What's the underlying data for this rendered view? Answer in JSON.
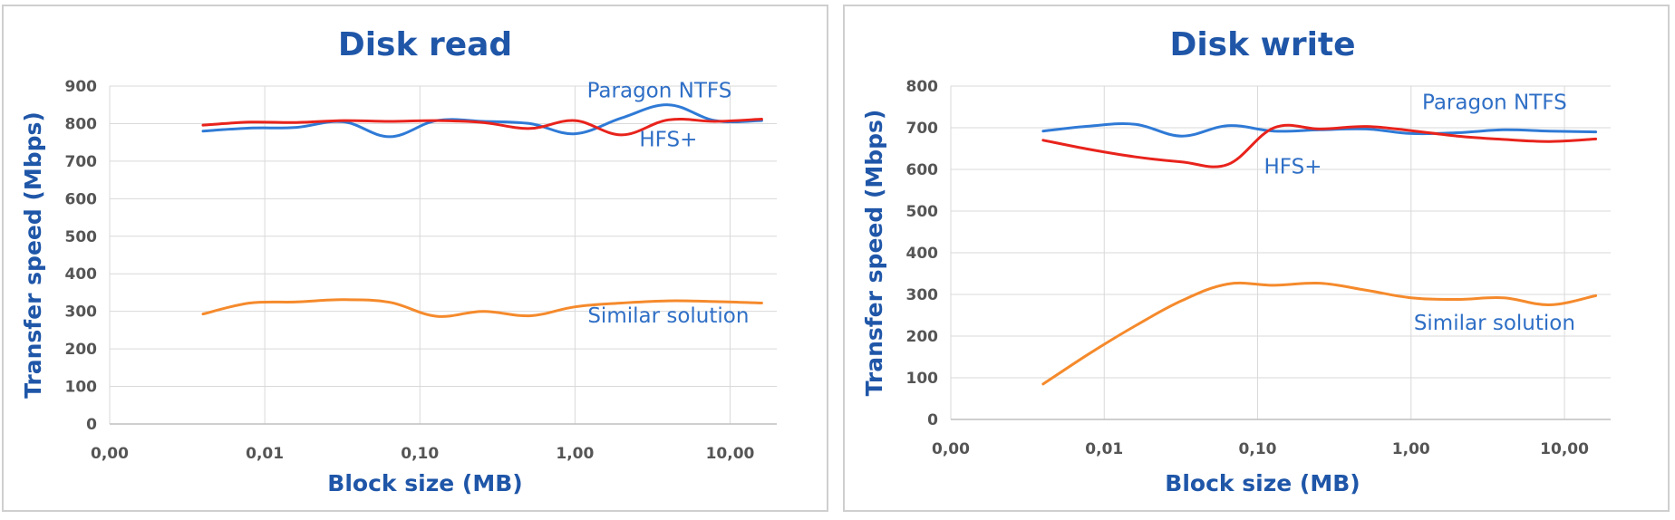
{
  "chart_data": [
    {
      "type": "line",
      "title": "Disk read",
      "xlabel": "Block size (MB)",
      "ylabel": "Transfer speed (Mbps)",
      "x_scale": "log",
      "xlim": [
        0.001,
        20
      ],
      "ylim": [
        0,
        900
      ],
      "x_ticks": [
        0.001,
        0.01,
        0.1,
        1,
        10
      ],
      "x_tick_labels": [
        "0,00",
        "0,01",
        "0,10",
        "1,00",
        "10,00"
      ],
      "y_ticks": [
        0,
        100,
        200,
        300,
        400,
        500,
        600,
        700,
        800,
        900
      ],
      "grid": true,
      "series": [
        {
          "name": "Paragon NTFS",
          "color": "#2f7ad6",
          "x": [
            0.004,
            0.008,
            0.016,
            0.032,
            0.064,
            0.128,
            0.256,
            0.512,
            1,
            2,
            4,
            8,
            16
          ],
          "y": [
            780,
            788,
            790,
            805,
            765,
            808,
            806,
            800,
            773,
            815,
            850,
            808,
            808
          ]
        },
        {
          "name": "HFS+",
          "color": "#e8231c",
          "x": [
            0.004,
            0.008,
            0.016,
            0.032,
            0.064,
            0.128,
            0.256,
            0.512,
            1,
            2,
            4,
            8,
            16
          ],
          "y": [
            796,
            804,
            803,
            808,
            806,
            808,
            803,
            787,
            808,
            770,
            810,
            806,
            812
          ]
        },
        {
          "name": "Similar solution",
          "color": "#f58a2c",
          "x": [
            0.004,
            0.008,
            0.016,
            0.032,
            0.064,
            0.128,
            0.256,
            0.512,
            1,
            2,
            4,
            8,
            16
          ],
          "y": [
            293,
            322,
            325,
            331,
            324,
            287,
            300,
            288,
            312,
            322,
            328,
            326,
            322
          ]
        }
      ],
      "annotations": [
        {
          "text": "Paragon NTFS",
          "x": 3.5,
          "y": 870
        },
        {
          "text": "HFS+",
          "x": 4.0,
          "y": 740
        },
        {
          "text": "Similar solution",
          "x": 4.0,
          "y": 270
        }
      ]
    },
    {
      "type": "line",
      "title": "Disk write",
      "xlabel": "Block size (MB)",
      "ylabel": "Transfer speed (Mbps)",
      "x_scale": "log",
      "xlim": [
        0.001,
        20
      ],
      "ylim": [
        0,
        800
      ],
      "x_ticks": [
        0.001,
        0.01,
        0.1,
        1,
        10
      ],
      "x_tick_labels": [
        "0,00",
        "0,01",
        "0,10",
        "1,00",
        "10,00"
      ],
      "y_ticks": [
        0,
        100,
        200,
        300,
        400,
        500,
        600,
        700,
        800
      ],
      "grid": true,
      "series": [
        {
          "name": "Paragon NTFS",
          "color": "#2f7ad6",
          "x": [
            0.004,
            0.008,
            0.016,
            0.032,
            0.064,
            0.128,
            0.256,
            0.512,
            1,
            2,
            4,
            8,
            16
          ],
          "y": [
            692,
            704,
            708,
            680,
            705,
            692,
            695,
            697,
            686,
            688,
            695,
            692,
            690
          ]
        },
        {
          "name": "HFS+",
          "color": "#e8231c",
          "x": [
            0.004,
            0.008,
            0.016,
            0.032,
            0.064,
            0.128,
            0.256,
            0.512,
            1,
            2,
            4,
            8,
            16
          ],
          "y": [
            670,
            648,
            630,
            618,
            612,
            700,
            697,
            703,
            693,
            680,
            672,
            667,
            673
          ]
        },
        {
          "name": "Similar solution",
          "color": "#f58a2c",
          "x": [
            0.004,
            0.008,
            0.016,
            0.032,
            0.064,
            0.128,
            0.256,
            0.512,
            1,
            2,
            4,
            8,
            16
          ],
          "y": [
            85,
            158,
            225,
            285,
            325,
            322,
            327,
            310,
            292,
            288,
            292,
            275,
            297
          ]
        }
      ],
      "annotations": [
        {
          "text": "Paragon NTFS",
          "x": 3.5,
          "y": 745
        },
        {
          "text": "HFS+",
          "x": 0.17,
          "y": 590
        },
        {
          "text": "Similar solution",
          "x": 3.5,
          "y": 215
        }
      ]
    }
  ]
}
